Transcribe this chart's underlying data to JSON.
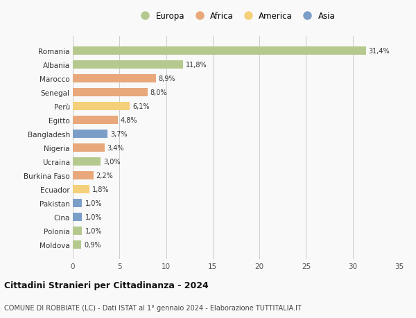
{
  "countries": [
    "Romania",
    "Albania",
    "Marocco",
    "Senegal",
    "Perù",
    "Egitto",
    "Bangladesh",
    "Nigeria",
    "Ucraina",
    "Burkina Faso",
    "Ecuador",
    "Pakistan",
    "Cina",
    "Polonia",
    "Moldova"
  ],
  "values": [
    31.4,
    11.8,
    8.9,
    8.0,
    6.1,
    4.8,
    3.7,
    3.4,
    3.0,
    2.2,
    1.8,
    1.0,
    1.0,
    1.0,
    0.9
  ],
  "labels": [
    "31,4%",
    "11,8%",
    "8,9%",
    "8,0%",
    "6,1%",
    "4,8%",
    "3,7%",
    "3,4%",
    "3,0%",
    "2,2%",
    "1,8%",
    "1,0%",
    "1,0%",
    "1,0%",
    "0,9%"
  ],
  "continents": [
    "Europa",
    "Europa",
    "Africa",
    "Africa",
    "America",
    "Africa",
    "Asia",
    "Africa",
    "Europa",
    "Africa",
    "America",
    "Asia",
    "Asia",
    "Europa",
    "Europa"
  ],
  "colors": {
    "Europa": "#b5c98e",
    "Africa": "#e8a87c",
    "America": "#f5d07a",
    "Asia": "#7b9ec8"
  },
  "legend_order": [
    "Europa",
    "Africa",
    "America",
    "Asia"
  ],
  "title": "Cittadini Stranieri per Cittadinanza - 2024",
  "subtitle": "COMUNE DI ROBBIATE (LC) - Dati ISTAT al 1° gennaio 2024 - Elaborazione TUTTITALIA.IT",
  "xlim": [
    0,
    35
  ],
  "xticks": [
    0,
    5,
    10,
    15,
    20,
    25,
    30,
    35
  ],
  "background_color": "#f9f9f9",
  "grid_color": "#cccccc"
}
